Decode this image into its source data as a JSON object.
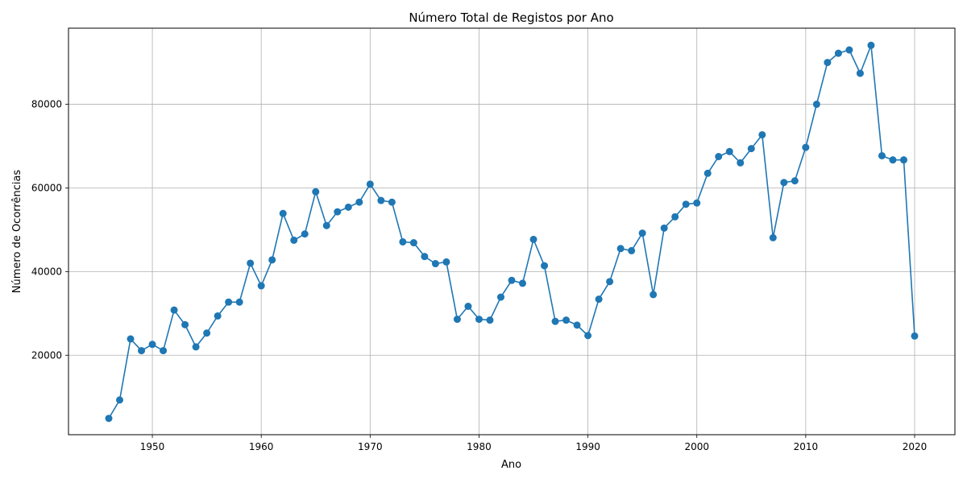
{
  "chart_data": {
    "type": "line",
    "title": "Número Total de Registos por Ano",
    "xlabel": "Ano",
    "ylabel": "Número de Ocorrências",
    "xlim": [
      1942.3,
      2023.7
    ],
    "ylim": [
      1000,
      98200
    ],
    "xticks": [
      1950,
      1960,
      1970,
      1980,
      1990,
      2000,
      2010,
      2020
    ],
    "xtick_labels": [
      "1950",
      "1960",
      "1970",
      "1980",
      "1990",
      "2000",
      "2010",
      "2020"
    ],
    "yticks": [
      20000,
      40000,
      60000,
      80000
    ],
    "ytick_labels": [
      "20000",
      "40000",
      "60000",
      "80000"
    ],
    "grid": true,
    "marker": "circle",
    "color": "#1f77b4",
    "series": [
      {
        "name": "",
        "x": [
          1946,
          1947,
          1948,
          1949,
          1950,
          1951,
          1952,
          1953,
          1954,
          1955,
          1956,
          1957,
          1958,
          1959,
          1960,
          1961,
          1962,
          1963,
          1964,
          1965,
          1966,
          1967,
          1968,
          1969,
          1970,
          1971,
          1972,
          1973,
          1974,
          1975,
          1976,
          1977,
          1978,
          1979,
          1980,
          1981,
          1982,
          1983,
          1984,
          1985,
          1986,
          1987,
          1988,
          1989,
          1990,
          1991,
          1992,
          1993,
          1994,
          1995,
          1996,
          1997,
          1998,
          1999,
          2000,
          2001,
          2002,
          2003,
          2004,
          2005,
          2006,
          2007,
          2008,
          2009,
          2010,
          2011,
          2012,
          2013,
          2014,
          2015,
          2016,
          2017,
          2018,
          2019,
          2020
        ],
        "y": [
          4900,
          9300,
          23900,
          21100,
          22600,
          21100,
          30800,
          27300,
          22000,
          25300,
          29400,
          32700,
          32700,
          42000,
          36600,
          42800,
          53900,
          47500,
          49000,
          59100,
          51000,
          54300,
          55400,
          56600,
          60900,
          57000,
          56600,
          47100,
          46900,
          43600,
          41900,
          42300,
          28600,
          31700,
          28600,
          28400,
          33900,
          37900,
          37200,
          47700,
          41400,
          28100,
          28400,
          27200,
          24700,
          33400,
          37600,
          45500,
          45000,
          49200,
          34500,
          50400,
          53100,
          56100,
          56400,
          63500,
          67500,
          68700,
          66000,
          69400,
          72700,
          48100,
          61300,
          61700,
          69700,
          80000,
          90000,
          92200,
          93000,
          87400,
          94100,
          67700,
          66700,
          66700,
          24600
        ]
      }
    ]
  }
}
